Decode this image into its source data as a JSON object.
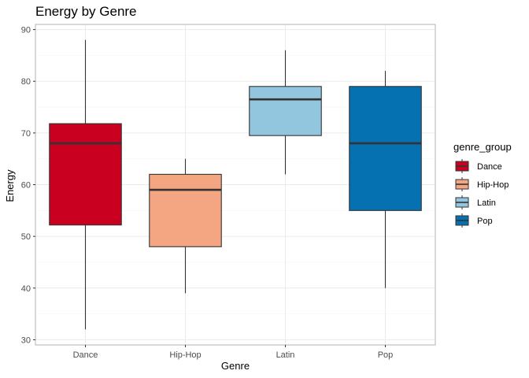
{
  "chart_data": {
    "type": "boxplot",
    "title": "Energy by Genre",
    "xlabel": "Genre",
    "ylabel": "Energy",
    "ylim": [
      29,
      91
    ],
    "yticks": [
      30,
      40,
      50,
      60,
      70,
      80,
      90
    ],
    "grid": true,
    "legend": {
      "title": "genre_group",
      "placement": "right",
      "entries": [
        "Dance",
        "Hip-Hop",
        "Latin",
        "Pop"
      ]
    },
    "categories": [
      "Dance",
      "Hip-Hop",
      "Latin",
      "Pop"
    ],
    "boxes": [
      {
        "category": "Dance",
        "min": 32,
        "q1": 52.2,
        "median": 68.0,
        "q3": 71.8,
        "max": 88,
        "color": "#ca0020"
      },
      {
        "category": "Hip-Hop",
        "min": 39,
        "q1": 48.0,
        "median": 59.0,
        "q3": 62.0,
        "max": 65,
        "color": "#f4a582"
      },
      {
        "category": "Latin",
        "min": 62,
        "q1": 69.5,
        "median": 76.5,
        "q3": 79.0,
        "max": 86,
        "color": "#92c5de"
      },
      {
        "category": "Pop",
        "min": 40,
        "q1": 55.0,
        "median": 68.0,
        "q3": 79.0,
        "max": 82,
        "color": "#0571b0"
      }
    ]
  }
}
